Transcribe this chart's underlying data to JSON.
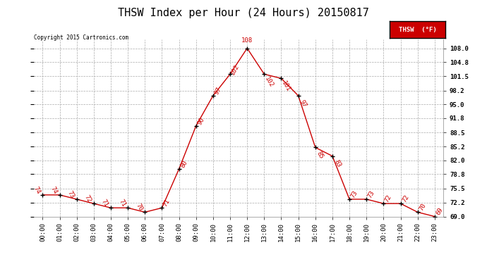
{
  "title": "THSW Index per Hour (24 Hours) 20150817",
  "copyright": "Copyright 2015 Cartronics.com",
  "legend_label": "THSW  (°F)",
  "hours": [
    0,
    1,
    2,
    3,
    4,
    5,
    6,
    7,
    8,
    9,
    10,
    11,
    12,
    13,
    14,
    15,
    16,
    17,
    18,
    19,
    20,
    21,
    22,
    23
  ],
  "values": [
    74,
    74,
    73,
    72,
    71,
    71,
    70,
    71,
    80,
    90,
    97,
    102,
    108,
    102,
    101,
    97,
    85,
    83,
    73,
    73,
    72,
    72,
    70,
    69
  ],
  "xlabels": [
    "00:00",
    "01:00",
    "02:00",
    "03:00",
    "04:00",
    "05:00",
    "06:00",
    "07:00",
    "08:00",
    "09:00",
    "10:00",
    "11:00",
    "12:00",
    "13:00",
    "14:00",
    "15:00",
    "16:00",
    "17:00",
    "18:00",
    "19:00",
    "20:00",
    "21:00",
    "22:00",
    "23:00"
  ],
  "ylim": [
    69.0,
    110.0
  ],
  "yticks": [
    69.0,
    72.2,
    75.5,
    78.8,
    82.0,
    85.2,
    88.5,
    91.8,
    95.0,
    98.2,
    101.5,
    104.8,
    108.0
  ],
  "line_color": "#cc0000",
  "marker_color": "#000000",
  "background_color": "#ffffff",
  "grid_color": "#aaaaaa",
  "title_fontsize": 11,
  "label_fontsize": 6.5,
  "annotation_fontsize": 6.5,
  "figsize": [
    6.9,
    3.75
  ],
  "dpi": 100
}
